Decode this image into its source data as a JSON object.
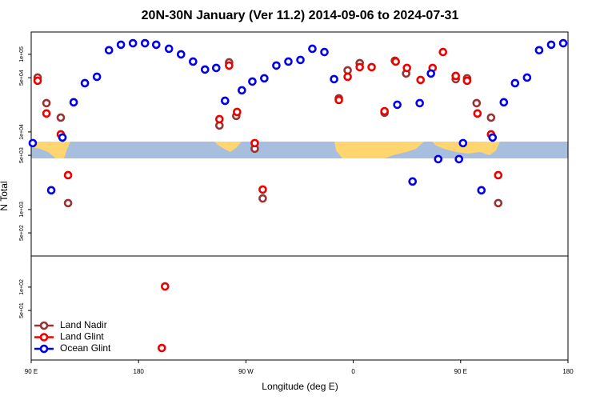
{
  "chart_data": {
    "type": "scatter",
    "title": "20N-30N January (Ver 11.2)   2014-09-06 to 2024-07-31",
    "xlabel": "Longitude (deg E)",
    "ylabel": "N Total",
    "xlim": [
      90,
      540
    ],
    "ylim": [
      11.5,
      194000
    ],
    "ylog": true,
    "legend": "bottom-left",
    "xticks": [
      {
        "value": 90,
        "label": "90 E"
      },
      180,
      {
        "value": 270,
        "label": "90 W"
      },
      {
        "value": 360,
        "label": "0"
      },
      {
        "value": 450,
        "label": "90 E"
      },
      {
        "value": 540,
        "label": "180"
      }
    ],
    "yticks": [
      {
        "value": 100000,
        "label": "1e+05"
      },
      {
        "value": 50000,
        "label": "5e+04"
      },
      {
        "value": 10000,
        "label": "1e+04"
      },
      {
        "value": 5000,
        "label": "5e+03"
      },
      {
        "value": 1000,
        "label": "1e+03"
      },
      {
        "value": 500,
        "label": "5e+02"
      },
      {
        "value": 100,
        "label": "1e+02"
      },
      {
        "value": 50,
        "label": "5e+01"
      }
    ],
    "series": [
      {
        "name": "Land Nadir",
        "color": "#993333",
        "x": [
          95.4,
          102.8,
          114.8,
          120.9,
          277.4,
          284.1,
          261.9,
          247.8,
          255.9,
          347.9,
          355.3,
          365.4,
          386.2,
          394.9,
          404.3,
          445.9,
          455.4,
          463.4,
          475.5,
          481.5
        ],
        "values": [
          50200,
          23500,
          15300,
          1210,
          6080,
          1390,
          16100,
          12100,
          78800,
          27100,
          62200,
          77000,
          17700,
          82700,
          56600,
          47900,
          49100,
          23500,
          15300,
          1210
        ]
      },
      {
        "name": "Land Glint",
        "color": "#ee0000",
        "x": [
          95.4,
          102.8,
          114.8,
          120.9,
          202.2,
          199.5,
          277.4,
          284.1,
          262.6,
          247.8,
          255.9,
          347.9,
          355.3,
          365.4,
          375.4,
          386.2,
          395.6,
          405.0,
          416.4,
          426.5,
          435.2,
          445.9,
          455.4,
          464.1,
          475.5,
          481.5
        ],
        "values": [
          45700,
          17300,
          9300,
          2770,
          102,
          16.4,
          7180,
          1810,
          18100,
          14600,
          71700,
          25800,
          51400,
          68400,
          68400,
          18500,
          80700,
          66800,
          46800,
          66800,
          107000,
          52700,
          45700,
          17300,
          9300,
          2770
        ]
      },
      {
        "name": "Ocean Glint",
        "color": "#0000ee",
        "x": [
          91.3,
          106.8,
          116.2,
          125.6,
          135.0,
          145.1,
          155.2,
          165.2,
          175.3,
          185.4,
          194.8,
          205.5,
          215.6,
          225.7,
          235.7,
          245.1,
          252.5,
          266.6,
          275.4,
          285.4,
          295.5,
          305.6,
          315.7,
          325.7,
          335.8,
          343.9,
          396.9,
          409.7,
          415.7,
          425.1,
          431.2,
          448.6,
          452.0,
          467.4,
          476.8,
          486.2,
          495.6,
          505.7,
          515.8,
          525.9,
          536.0
        ],
        "values": [
          7180,
          1770,
          8470,
          24100,
          42500,
          51400,
          113000,
          133000,
          139000,
          139000,
          133000,
          118000,
          100000,
          80700,
          63700,
          66800,
          25200,
          34400,
          44600,
          49100,
          71700,
          80700,
          84700,
          118000,
          107000,
          47900,
          22400,
          2300,
          23500,
          56600,
          4460,
          4460,
          7180,
          1770,
          8470,
          24100,
          42500,
          50200,
          113000,
          133000,
          139000
        ]
      }
    ]
  }
}
